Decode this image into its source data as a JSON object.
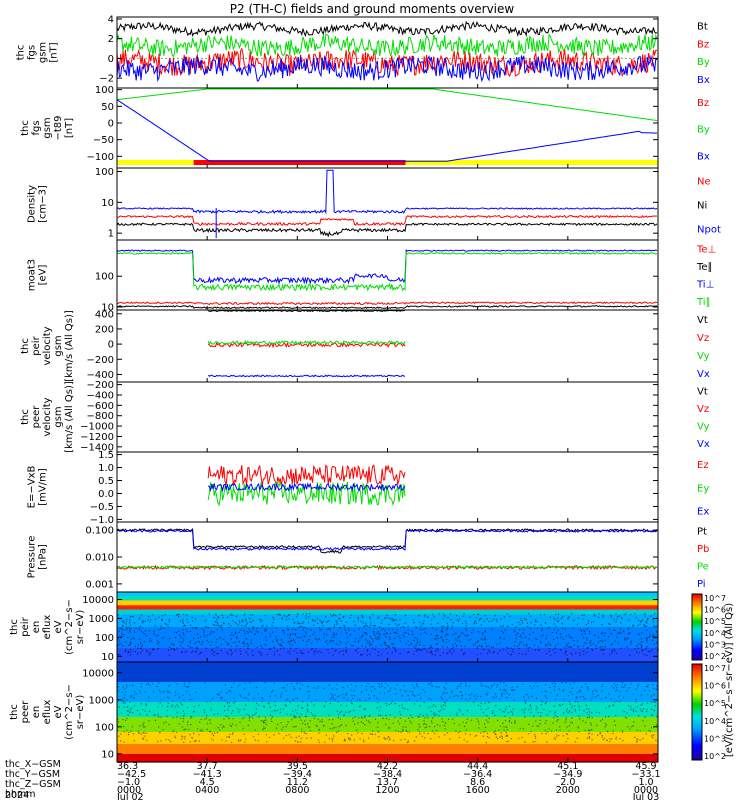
{
  "title": "P2 (TH-C) fields and ground moments overview",
  "colors": {
    "black": "#000000",
    "red": "#ff0000",
    "green": "#00dd00",
    "blue": "#0000ff",
    "yellow": "#ffff00"
  },
  "chart_data": [
    {
      "type": "line",
      "key": "p1",
      "ylabel": [
        "thc",
        "fgs",
        "gsm",
        "[nT]"
      ],
      "ylim": [
        -3,
        4.2
      ],
      "yticks": [
        {
          "v": 4,
          "l": "4"
        },
        {
          "v": 2,
          "l": "2"
        },
        {
          "v": 0,
          "l": "0"
        },
        {
          "v": -2,
          "l": "−2"
        }
      ],
      "series": [
        {
          "name": "Bt",
          "color": "#000000",
          "level": 3.0,
          "noise": 0.4
        },
        {
          "name": "Bz",
          "color": "#ff0000",
          "level": -0.4,
          "noise": 1.1
        },
        {
          "name": "By",
          "color": "#00dd00",
          "level": 1.3,
          "noise": 0.9
        },
        {
          "name": "Bx",
          "color": "#0000ff",
          "level": -1.0,
          "noise": 1.0
        }
      ]
    },
    {
      "type": "line",
      "key": "p2",
      "ylabel": [
        "thc",
        "fgs",
        "gsm",
        "−t89",
        "[nT]"
      ],
      "ylim": [
        -135,
        105
      ],
      "yticks": [
        {
          "v": 100,
          "l": "100"
        },
        {
          "v": 50,
          "l": "50"
        },
        {
          "v": 0,
          "l": "0"
        },
        {
          "v": -50,
          "l": "−50"
        },
        {
          "v": -100,
          "l": "−100"
        }
      ],
      "series": [
        {
          "name": "Bz",
          "color": "#ff0000"
        },
        {
          "name": "By",
          "color": "#00dd00"
        },
        {
          "name": "Bx",
          "color": "#0000ff"
        }
      ],
      "region_bar": [
        {
          "from": 0,
          "to": 3.4,
          "color": "#ffff00"
        },
        {
          "from": 3.4,
          "to": 12.8,
          "color": "#ff0000"
        },
        {
          "from": 12.8,
          "to": 24,
          "color": "#ffff00"
        }
      ]
    },
    {
      "type": "line",
      "key": "p3",
      "log": true,
      "ylabel": [
        "Density",
        "[cm−3]"
      ],
      "ylim": [
        0.6,
        130
      ],
      "yticks": [
        {
          "v": 100,
          "l": "100"
        },
        {
          "v": 10,
          "l": "10"
        },
        {
          "v": 1,
          "l": "1"
        }
      ],
      "series": [
        {
          "name": "Ne",
          "color": "#ff0000"
        },
        {
          "name": "Ni",
          "color": "#000000"
        },
        {
          "name": "Npot",
          "color": "#0000ff"
        }
      ]
    },
    {
      "type": "line",
      "key": "p4",
      "log": true,
      "ylabel": [
        "moat3",
        "[eV]"
      ],
      "ylim": [
        8,
        1500
      ],
      "yticks": [
        {
          "v": 100,
          "l": "100"
        },
        {
          "v": 10,
          "l": "10"
        }
      ],
      "series": [
        {
          "name": "Te⊥",
          "color": "#ff0000"
        },
        {
          "name": "Te∥",
          "color": "#000000"
        },
        {
          "name": "Ti⊥",
          "color": "#0000ff"
        },
        {
          "name": "Ti∥",
          "color": "#00dd00"
        }
      ]
    },
    {
      "type": "line",
      "key": "p5",
      "ylabel": [
        "thc",
        "peir",
        "velocity",
        "gsm",
        "[km/s (All Qs)]"
      ],
      "ylim": [
        -500,
        450
      ],
      "yticks": [
        {
          "v": 400,
          "l": "400"
        },
        {
          "v": 200,
          "l": "200"
        },
        {
          "v": 0,
          "l": "0"
        },
        {
          "v": -200,
          "l": "−200"
        },
        {
          "v": -400,
          "l": "−400"
        }
      ],
      "series": [
        {
          "name": "Vt",
          "color": "#000000"
        },
        {
          "name": "Vz",
          "color": "#ff0000"
        },
        {
          "name": "Vy",
          "color": "#00dd00"
        },
        {
          "name": "Vx",
          "color": "#0000ff"
        }
      ]
    },
    {
      "type": "line",
      "key": "p6",
      "ylabel": [
        "thc",
        "peer",
        "velocity",
        "gsm",
        "[km/s (All Qs)]"
      ],
      "ylim": [
        -1500,
        -150
      ],
      "yticks": [
        {
          "v": -200,
          "l": "−200"
        },
        {
          "v": -400,
          "l": "−400"
        },
        {
          "v": -600,
          "l": "−600"
        },
        {
          "v": -800,
          "l": "−800"
        },
        {
          "v": -1000,
          "l": "−1000"
        },
        {
          "v": -1200,
          "l": "−1200"
        },
        {
          "v": -1400,
          "l": "−1400"
        }
      ],
      "series": [
        {
          "name": "Vt",
          "color": "#000000"
        },
        {
          "name": "Vz",
          "color": "#ff0000"
        },
        {
          "name": "Vy",
          "color": "#00dd00"
        },
        {
          "name": "Vx",
          "color": "#0000ff"
        }
      ]
    },
    {
      "type": "line",
      "key": "p7",
      "ylabel": [
        "E=−VxB",
        "[mV/m]"
      ],
      "ylim": [
        -1.1,
        1.6
      ],
      "yticks": [
        {
          "v": 1.5,
          "l": "1.5"
        },
        {
          "v": 1.0,
          "l": "1.0"
        },
        {
          "v": 0.5,
          "l": "0.5"
        },
        {
          "v": 0.0,
          "l": "0.0"
        },
        {
          "v": -0.5,
          "l": "−0.5"
        },
        {
          "v": -1.0,
          "l": "−1.0"
        }
      ],
      "series": [
        {
          "name": "Ez",
          "color": "#ff0000"
        },
        {
          "name": "Ey",
          "color": "#00dd00"
        },
        {
          "name": "Ex",
          "color": "#0000ff"
        }
      ]
    },
    {
      "type": "line",
      "key": "p8",
      "log": true,
      "ylabel": [
        "Pressure",
        "[nPa]"
      ],
      "ylim": [
        0.0005,
        0.2
      ],
      "yticks": [
        {
          "v": 0.1,
          "l": "0.100"
        },
        {
          "v": 0.01,
          "l": "0.010"
        },
        {
          "v": 0.001,
          "l": "0.001"
        }
      ],
      "series": [
        {
          "name": "Pt",
          "color": "#000000"
        },
        {
          "name": "Pb",
          "color": "#ff0000"
        },
        {
          "name": "Pe",
          "color": "#00dd00"
        },
        {
          "name": "Pi",
          "color": "#0000ff"
        }
      ]
    },
    {
      "type": "heatmap",
      "key": "p9",
      "log": true,
      "ylabel": [
        "thc",
        "peir",
        "en",
        "eflux",
        "eV",
        "(cm^2−s−",
        "sr−eV)"
      ],
      "ylim": [
        5,
        25000
      ],
      "yticks": [
        {
          "v": 10000,
          "l": "10000"
        },
        {
          "v": 1000,
          "l": "1000"
        },
        {
          "v": 100,
          "l": "100"
        },
        {
          "v": 10,
          "l": "10"
        }
      ]
    },
    {
      "type": "heatmap",
      "key": "p10",
      "log": true,
      "ylabel": [
        "thc",
        "peer",
        "en",
        "eflux",
        "eV",
        "(cm^2−s−",
        "sr−eV)"
      ],
      "ylim": [
        5,
        25000
      ],
      "yticks": [
        {
          "v": 10000,
          "l": "10000"
        },
        {
          "v": 1000,
          "l": "1000"
        },
        {
          "v": 100,
          "l": "100"
        },
        {
          "v": 10,
          "l": "10"
        }
      ]
    }
  ],
  "colorbar": {
    "label": "[eV/(cm^2−s−sr−eV)] (All Qs)",
    "ticks": [
      "10^7",
      "10^6",
      "10^5",
      "10^4",
      "10^3",
      "10^2"
    ]
  },
  "x_axis": {
    "row_labels": [
      "thc_X−GSM",
      "thc_Y−GSM",
      "thc_Z−GSM",
      "hhmm",
      "2024"
    ],
    "columns": [
      {
        "x": "36.3",
        "y": "−42.5",
        "z": "−1.0",
        "hhmm": "0000",
        "date": "Jul 02"
      },
      {
        "x": "37.7",
        "y": "−41.3",
        "z": "4.5",
        "hhmm": "0400",
        "date": ""
      },
      {
        "x": "39.5",
        "y": "−39.4",
        "z": "11.2",
        "hhmm": "0800",
        "date": ""
      },
      {
        "x": "42.2",
        "y": "−38.4",
        "z": "13.7",
        "hhmm": "1200",
        "date": ""
      },
      {
        "x": "44.4",
        "y": "−36.4",
        "z": "8.6",
        "hhmm": "1600",
        "date": ""
      },
      {
        "x": "45.1",
        "y": "−34.9",
        "z": "2.0",
        "hhmm": "2000",
        "date": ""
      },
      {
        "x": "45.9",
        "y": "−33.1",
        "z": "1.0",
        "hhmm": "0000",
        "date": "Jul 03"
      }
    ]
  }
}
